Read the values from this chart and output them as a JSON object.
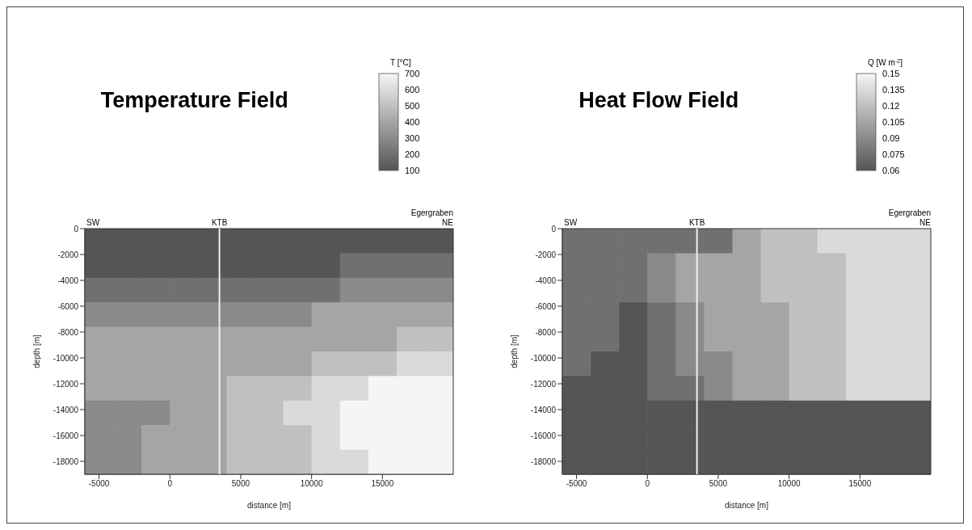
{
  "chart_data": [
    {
      "type": "heatmap",
      "title": "Temperature Field",
      "clabel": "T [°C]",
      "xlabel": "distance [m]",
      "ylabel": "depth [m]",
      "xlim": [
        -6000,
        20000
      ],
      "ylim": [
        -19000,
        0
      ],
      "xticks": [
        -5000,
        0,
        5000,
        10000,
        15000
      ],
      "yticks": [
        0,
        -2000,
        -4000,
        -6000,
        -8000,
        -10000,
        -12000,
        -14000,
        -16000,
        -18000
      ],
      "clim": [
        100,
        700
      ],
      "cticks": [
        100,
        200,
        300,
        400,
        500,
        600,
        700
      ],
      "x": [
        -5000,
        -3000,
        -1000,
        1000,
        3000,
        5000,
        7000,
        9000,
        11000,
        13000,
        15000,
        17000,
        19000
      ],
      "y": [
        -950,
        -2850,
        -4750,
        -6650,
        -8550,
        -10450,
        -12350,
        -14250,
        -16150,
        -18050
      ],
      "cells": [
        [
          100,
          100,
          100,
          100,
          100,
          100,
          100,
          100,
          100,
          100,
          100,
          100,
          100
        ],
        [
          100,
          100,
          100,
          100,
          100,
          100,
          100,
          100,
          100,
          200,
          200,
          200,
          200
        ],
        [
          200,
          200,
          200,
          200,
          200,
          200,
          200,
          200,
          200,
          300,
          300,
          300,
          300
        ],
        [
          300,
          300,
          300,
          300,
          300,
          300,
          300,
          300,
          400,
          400,
          400,
          400,
          400
        ],
        [
          400,
          400,
          400,
          400,
          400,
          400,
          400,
          400,
          400,
          400,
          400,
          500,
          500
        ],
        [
          400,
          400,
          400,
          400,
          400,
          400,
          400,
          400,
          500,
          500,
          500,
          600,
          600
        ],
        [
          400,
          400,
          400,
          400,
          400,
          500,
          500,
          500,
          600,
          600,
          700,
          700,
          700
        ],
        [
          300,
          300,
          300,
          400,
          400,
          500,
          500,
          600,
          600,
          700,
          700,
          700,
          700
        ],
        [
          300,
          300,
          400,
          400,
          400,
          500,
          500,
          500,
          600,
          700,
          700,
          700,
          700
        ],
        [
          300,
          300,
          400,
          400,
          400,
          500,
          500,
          500,
          600,
          600,
          700,
          700,
          700
        ]
      ],
      "ref_lines": [
        {
          "axis": "x",
          "value": 3500,
          "label": "KTB",
          "color": "#f0f0f0"
        }
      ],
      "annotations": [
        "SW",
        "NE",
        "Egergraben"
      ]
    },
    {
      "type": "heatmap",
      "title": "Heat Flow Field",
      "clabel": "Q [W m$^{-2}$]",
      "xlabel": "distance [m]",
      "ylabel": "depth [m]",
      "xlim": [
        -6000,
        20000
      ],
      "ylim": [
        -19000,
        0
      ],
      "xticks": [
        -5000,
        0,
        5000,
        10000,
        15000
      ],
      "yticks": [
        0,
        -2000,
        -4000,
        -6000,
        -8000,
        -10000,
        -12000,
        -14000,
        -16000,
        -18000
      ],
      "clim": [
        0.06,
        0.15
      ],
      "cticks": [
        0.06,
        0.075,
        0.09,
        0.105,
        0.12,
        0.135,
        0.15
      ],
      "x": [
        -5000,
        -3000,
        -1000,
        1000,
        3000,
        5000,
        7000,
        9000,
        11000,
        13000,
        15000,
        17000,
        19000
      ],
      "y": [
        -950,
        -2850,
        -4750,
        -6650,
        -8550,
        -10450,
        -12350,
        -14250,
        -16150,
        -18050
      ],
      "cells": [
        [
          0.075,
          0.075,
          0.075,
          0.075,
          0.075,
          0.075,
          0.105,
          0.12,
          0.12,
          0.135,
          0.135,
          0.135,
          0.135
        ],
        [
          0.075,
          0.075,
          0.075,
          0.09,
          0.105,
          0.105,
          0.105,
          0.12,
          0.12,
          0.12,
          0.135,
          0.135,
          0.135
        ],
        [
          0.075,
          0.075,
          0.075,
          0.09,
          0.105,
          0.105,
          0.105,
          0.12,
          0.12,
          0.12,
          0.135,
          0.135,
          0.135
        ],
        [
          0.075,
          0.075,
          0.06,
          0.075,
          0.09,
          0.105,
          0.105,
          0.105,
          0.12,
          0.12,
          0.135,
          0.135,
          0.135
        ],
        [
          0.075,
          0.075,
          0.06,
          0.075,
          0.09,
          0.105,
          0.105,
          0.105,
          0.12,
          0.12,
          0.135,
          0.135,
          0.135
        ],
        [
          0.075,
          0.06,
          0.06,
          0.075,
          0.09,
          0.09,
          0.105,
          0.105,
          0.12,
          0.12,
          0.135,
          0.135,
          0.135
        ],
        [
          0.06,
          0.06,
          0.06,
          0.075,
          0.075,
          0.09,
          0.105,
          0.105,
          0.12,
          0.12,
          0.135,
          0.135,
          0.135
        ],
        [
          0.06,
          0.06,
          0.06,
          0.06,
          0.06,
          0.06,
          0.06,
          0.06,
          0.06,
          0.06,
          0.06,
          0.06,
          0.06
        ],
        [
          0.06,
          0.06,
          0.06,
          0.06,
          0.06,
          0.06,
          0.06,
          0.06,
          0.06,
          0.06,
          0.06,
          0.06,
          0.06
        ],
        [
          0.06,
          0.06,
          0.06,
          0.06,
          0.06,
          0.06,
          0.06,
          0.06,
          0.06,
          0.06,
          0.06,
          0.06,
          0.06
        ]
      ],
      "ref_lines": [
        {
          "axis": "x",
          "value": 3500,
          "label": "KTB",
          "color": "#f0f0f0"
        }
      ],
      "annotations": [
        "SW",
        "NE",
        "Egergraben"
      ]
    }
  ]
}
